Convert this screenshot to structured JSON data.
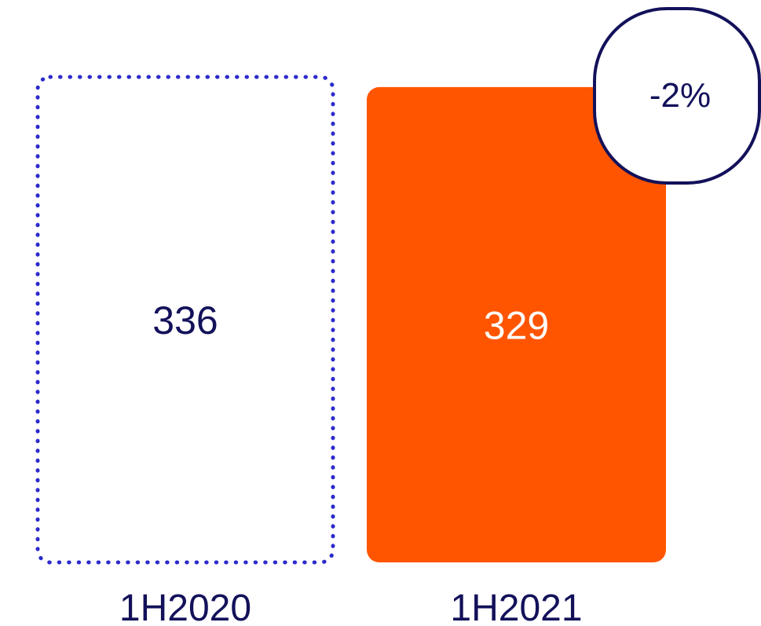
{
  "chart_data": {
    "type": "bar",
    "categories": [
      "1H2020",
      "1H2021"
    ],
    "values": [
      336,
      329
    ],
    "change_label": "-2%",
    "colors": {
      "previous_outline": "#2b2bcc",
      "current_fill": "#ff5500",
      "navy_text": "#13115a",
      "white_text": "#ffffff",
      "badge_border": "#13115a"
    }
  }
}
